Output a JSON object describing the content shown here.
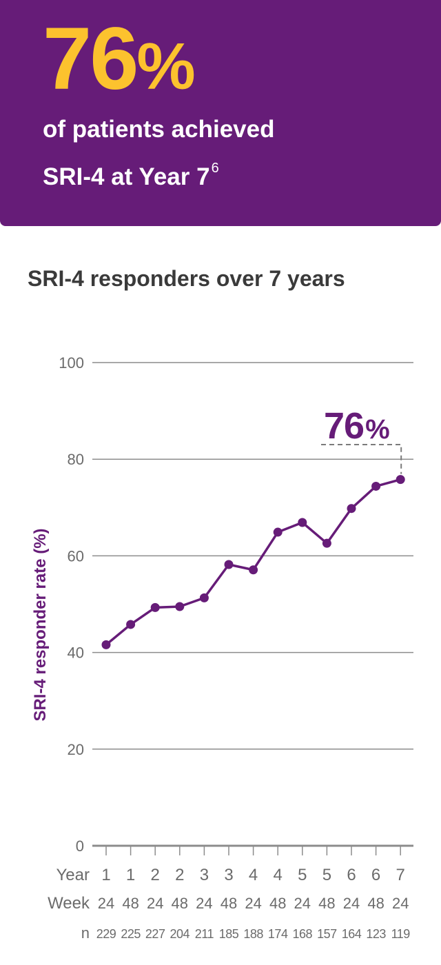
{
  "banner": {
    "value": "76",
    "unit": "%",
    "line1": "of patients achieved",
    "line2": "SRI-4 at Year 7",
    "footnote": "6",
    "bg_color": "#661c78",
    "accent_color": "#fcc22e"
  },
  "chart_data": {
    "type": "line",
    "title": "SRI-4 responders over 7 years",
    "xlabel": "",
    "ylabel": "SRI-4 responder rate (%)",
    "ylim": [
      0,
      100
    ],
    "yticks": [
      0,
      20,
      40,
      60,
      80,
      100
    ],
    "grid": true,
    "row_labels": {
      "year": "Year",
      "week": "Week",
      "n": "n"
    },
    "categories": [
      {
        "year": "1",
        "week": "24",
        "n": "229"
      },
      {
        "year": "1",
        "week": "48",
        "n": "225"
      },
      {
        "year": "2",
        "week": "24",
        "n": "227"
      },
      {
        "year": "2",
        "week": "48",
        "n": "204"
      },
      {
        "year": "3",
        "week": "24",
        "n": "211"
      },
      {
        "year": "3",
        "week": "48",
        "n": "185"
      },
      {
        "year": "4",
        "week": "24",
        "n": "188"
      },
      {
        "year": "4",
        "week": "48",
        "n": "174"
      },
      {
        "year": "5",
        "week": "24",
        "n": "168"
      },
      {
        "year": "5",
        "week": "48",
        "n": "157"
      },
      {
        "year": "6",
        "week": "24",
        "n": "164"
      },
      {
        "year": "6",
        "week": "48",
        "n": "123"
      },
      {
        "year": "7",
        "week": "24",
        "n": "119"
      }
    ],
    "values": [
      41.6,
      45.8,
      49.3,
      49.5,
      51.3,
      58.2,
      57.1,
      64.9,
      66.9,
      62.6,
      69.8,
      74.4,
      75.8
    ],
    "annotation": {
      "value": "76",
      "unit": "%",
      "point_index": 12
    },
    "line_color": "#661c78"
  }
}
